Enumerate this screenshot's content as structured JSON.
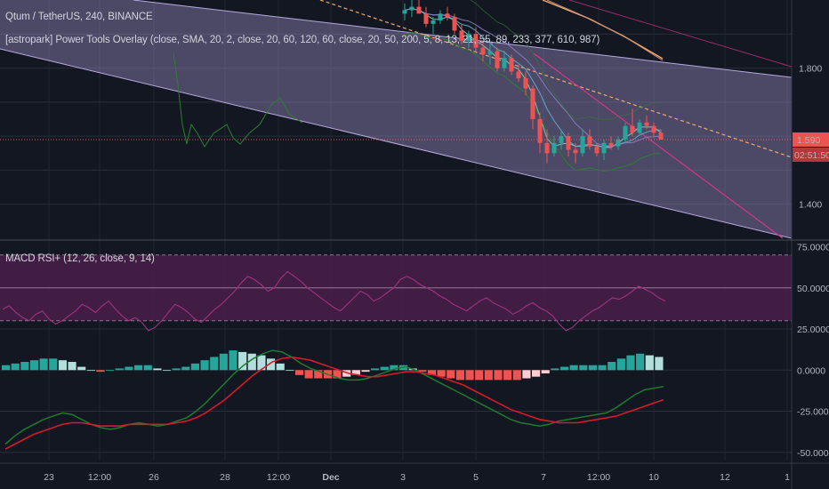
{
  "header": {
    "title": "Qtum / TetherUS, 240, BINANCE",
    "overlay_legend": "[astropark] Power Tools Overlay (close, SMA, 20, 2, close, 20, 60, 120, 60, close, 20, 50, 200, 5, 8, 13, 21, 55, 89, 233, 377, 610, 987)",
    "macd_legend": "MACD RSI+ (12, 26, close, 9, 14)"
  },
  "price_axis": {
    "ticks": [
      "1.800",
      "1.400"
    ],
    "last_price_label": "1.590",
    "countdown_label": "02:51:50",
    "label_color": "#ef5350"
  },
  "indicator_axis": {
    "ticks": [
      "75.0000",
      "50.0000",
      "25.0000",
      "0.0000",
      "-25.0000",
      "-50.0000"
    ]
  },
  "time_axis": {
    "labels": [
      "23",
      "12:00",
      "26",
      "28",
      "12:00",
      "Dec",
      "3",
      "5",
      "7",
      "12:00",
      "10",
      "12",
      "1"
    ]
  },
  "colors": {
    "background": "#131722",
    "channel_fill": "#9c8fc7",
    "up_candle": "#26a69a",
    "down_candle": "#ef5350",
    "rsi_band": "#4a1f4a",
    "rsi_line": "#a0327e",
    "macd_line": "#1f7a2e",
    "signal_line": "#d61a2a",
    "hist_up_strong": "#26a69a",
    "hist_up_weak": "#b2dfdb",
    "hist_down_strong": "#ef5350",
    "hist_down_weak": "#ffcdd2"
  },
  "chart_data": [
    {
      "type": "candlestick",
      "title": "Qtum / TetherUS, 240, BINANCE",
      "ylim": [
        1.3,
        2.0
      ],
      "y_ticks": [
        1.8,
        1.4
      ],
      "last_price": 1.59,
      "candles_ohlc": [
        [
          1.96,
          1.99,
          1.94,
          1.97
        ],
        [
          1.97,
          2.0,
          1.95,
          1.98
        ],
        [
          1.98,
          2.0,
          1.96,
          1.96
        ],
        [
          1.96,
          1.98,
          1.92,
          1.93
        ],
        [
          1.93,
          1.95,
          1.9,
          1.94
        ],
        [
          1.94,
          1.97,
          1.93,
          1.96
        ],
        [
          1.96,
          1.98,
          1.94,
          1.95
        ],
        [
          1.95,
          1.96,
          1.9,
          1.91
        ],
        [
          1.91,
          1.93,
          1.87,
          1.88
        ],
        [
          1.88,
          1.91,
          1.86,
          1.9
        ],
        [
          1.9,
          1.92,
          1.85,
          1.86
        ],
        [
          1.86,
          1.88,
          1.82,
          1.84
        ],
        [
          1.84,
          1.87,
          1.81,
          1.85
        ],
        [
          1.85,
          1.86,
          1.79,
          1.8
        ],
        [
          1.8,
          1.85,
          1.79,
          1.83
        ],
        [
          1.83,
          1.84,
          1.78,
          1.79
        ],
        [
          1.79,
          1.81,
          1.76,
          1.77
        ],
        [
          1.77,
          1.79,
          1.72,
          1.74
        ],
        [
          1.74,
          1.75,
          1.62,
          1.65
        ],
        [
          1.65,
          1.67,
          1.55,
          1.58
        ],
        [
          1.58,
          1.62,
          1.52,
          1.55
        ],
        [
          1.55,
          1.6,
          1.54,
          1.58
        ],
        [
          1.58,
          1.62,
          1.56,
          1.6
        ],
        [
          1.6,
          1.61,
          1.54,
          1.56
        ],
        [
          1.56,
          1.58,
          1.52,
          1.55
        ],
        [
          1.55,
          1.62,
          1.54,
          1.6
        ],
        [
          1.6,
          1.62,
          1.56,
          1.57
        ],
        [
          1.57,
          1.58,
          1.54,
          1.55
        ],
        [
          1.55,
          1.59,
          1.53,
          1.58
        ],
        [
          1.58,
          1.6,
          1.56,
          1.57
        ],
        [
          1.57,
          1.6,
          1.56,
          1.59
        ],
        [
          1.59,
          1.64,
          1.58,
          1.63
        ],
        [
          1.63,
          1.68,
          1.6,
          1.61
        ],
        [
          1.61,
          1.65,
          1.6,
          1.64
        ],
        [
          1.64,
          1.66,
          1.62,
          1.63
        ],
        [
          1.63,
          1.64,
          1.6,
          1.61
        ],
        [
          1.61,
          1.62,
          1.59,
          1.59
        ]
      ]
    },
    {
      "type": "line",
      "title": "MACD RSI+ (12, 26, close, 9, 14)",
      "ylim": [
        -55,
        78
      ],
      "y_ticks": [
        75,
        50,
        25,
        0,
        -25,
        -50
      ],
      "rsi_band": [
        30,
        70
      ],
      "rsi": [
        37,
        39,
        35,
        32,
        30,
        34,
        36,
        31,
        28,
        30,
        33,
        36,
        40,
        38,
        35,
        39,
        42,
        37,
        33,
        30,
        32,
        29,
        24,
        26,
        30,
        35,
        40,
        38,
        35,
        31,
        29,
        33,
        37,
        40,
        44,
        48,
        53,
        57,
        55,
        52,
        48,
        50,
        56,
        60,
        57,
        54,
        50,
        47,
        44,
        41,
        38,
        36,
        40,
        44,
        48,
        46,
        42,
        44,
        47,
        50,
        55,
        57,
        55,
        52,
        50,
        48,
        45,
        43,
        40,
        38,
        36,
        39,
        42,
        44,
        41,
        39,
        37,
        34,
        36,
        39,
        41,
        38,
        36,
        33,
        28,
        24,
        26,
        30,
        33,
        36,
        38,
        41,
        44,
        43,
        45,
        48,
        51,
        49,
        47,
        44,
        42
      ],
      "macd": [
        -45,
        -40,
        -36,
        -33,
        -30,
        -28,
        -26,
        -27,
        -30,
        -33,
        -35,
        -36,
        -35,
        -33,
        -32,
        -33,
        -34,
        -33,
        -31,
        -29,
        -25,
        -20,
        -14,
        -8,
        -2,
        3,
        7,
        10,
        12,
        11,
        8,
        4,
        1,
        -1,
        -3,
        -5,
        -6,
        -6,
        -5,
        -3,
        -1,
        1,
        2,
        0,
        -3,
        -6,
        -9,
        -12,
        -15,
        -18,
        -21,
        -24,
        -27,
        -30,
        -32,
        -33,
        -34,
        -33,
        -31,
        -30,
        -29,
        -28,
        -27,
        -26,
        -23,
        -19,
        -15,
        -12,
        -11,
        -10
      ],
      "signal": [
        -48,
        -45,
        -42,
        -39,
        -37,
        -35,
        -33,
        -32,
        -32,
        -33,
        -34,
        -34,
        -34,
        -33,
        -33,
        -33,
        -33,
        -33,
        -32,
        -31,
        -29,
        -26,
        -22,
        -18,
        -13,
        -8,
        -3,
        1,
        5,
        7,
        8,
        7,
        6,
        4,
        2,
        0,
        -2,
        -3,
        -4,
        -4,
        -3,
        -2,
        -1,
        -1,
        -2,
        -3,
        -5,
        -7,
        -9,
        -12,
        -15,
        -18,
        -21,
        -24,
        -26,
        -28,
        -30,
        -31,
        -32,
        -32,
        -32,
        -31,
        -30,
        -29,
        -28,
        -26,
        -24,
        -22,
        -20,
        -18
      ],
      "histogram": [
        3,
        4,
        5,
        6,
        7,
        7,
        6,
        5,
        2,
        0,
        -1,
        0,
        1,
        2,
        3,
        3,
        1,
        0,
        1,
        2,
        4,
        6,
        8,
        10,
        12,
        11,
        10,
        9,
        7,
        4,
        0,
        -3,
        -5,
        -5,
        -5,
        -5,
        -4,
        -3,
        -1,
        1,
        2,
        3,
        3,
        1,
        -1,
        -3,
        -4,
        -5,
        -6,
        -6,
        -6,
        -6,
        -6,
        -6,
        -6,
        -5,
        -4,
        -2,
        1,
        2,
        3,
        3,
        3,
        3,
        5,
        7,
        9,
        10,
        9,
        8
      ]
    }
  ]
}
